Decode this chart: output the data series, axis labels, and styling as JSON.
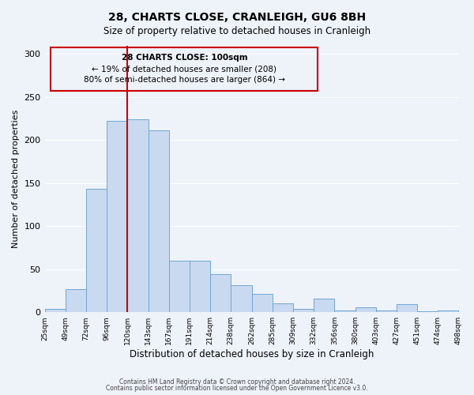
{
  "title": "28, CHARTS CLOSE, CRANLEIGH, GU6 8BH",
  "subtitle": "Size of property relative to detached houses in Cranleigh",
  "xlabel": "Distribution of detached houses by size in Cranleigh",
  "ylabel": "Number of detached properties",
  "footer_line1": "Contains HM Land Registry data © Crown copyright and database right 2024.",
  "footer_line2": "Contains public sector information licensed under the Open Government Licence v3.0.",
  "annotation_title": "28 CHARTS CLOSE: 100sqm",
  "annotation_line2": "← 19% of detached houses are smaller (208)",
  "annotation_line3": "80% of semi-detached houses are larger (864) →",
  "tick_labels": [
    "25sqm",
    "49sqm",
    "72sqm",
    "96sqm",
    "120sqm",
    "143sqm",
    "167sqm",
    "191sqm",
    "214sqm",
    "238sqm",
    "262sqm",
    "285sqm",
    "309sqm",
    "332sqm",
    "356sqm",
    "380sqm",
    "403sqm",
    "427sqm",
    "451sqm",
    "474sqm",
    "498sqm"
  ],
  "bar_values": [
    4,
    27,
    143,
    222,
    224,
    211,
    60,
    60,
    44,
    31,
    21,
    10,
    4,
    16,
    2,
    6,
    2,
    9,
    1,
    2
  ],
  "bar_color": "#c9d9ef",
  "bar_edge_color": "#6fa8d6",
  "vline_color": "#cc0000",
  "box_color": "#cc0000",
  "ylim": [
    0,
    310
  ],
  "yticks": [
    0,
    50,
    100,
    150,
    200,
    250,
    300
  ],
  "background_color": "#eef2f9",
  "plot_background": "#eef2f9"
}
